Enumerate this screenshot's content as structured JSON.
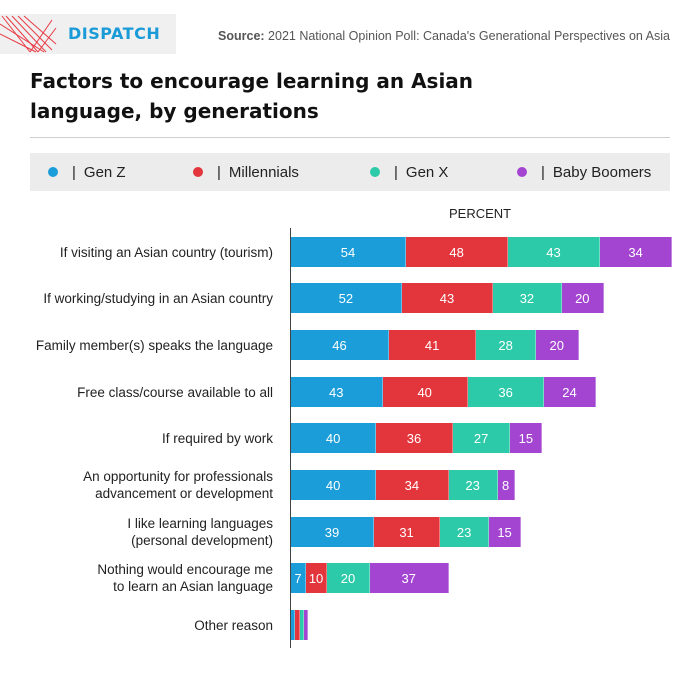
{
  "header": {
    "logo_text": "DISPATCH",
    "source_label": "Source:",
    "source_text": "2021 National Opinion Poll: Canada's Generational Perspectives on Asia"
  },
  "title": "Factors to encourage learning an Asian language, by generations",
  "colors": {
    "gen_z": "#1b9dd9",
    "millennials": "#e3363c",
    "gen_x": "#2ccaa8",
    "baby_boomers": "#a445d1",
    "logo_accent": "#e83a45"
  },
  "legend": [
    {
      "separator": "|",
      "name": "Gen Z"
    },
    {
      "separator": "|",
      "name": "Millennials"
    },
    {
      "separator": "|",
      "name": "Gen X"
    },
    {
      "separator": "|",
      "name": "Baby Boomers"
    }
  ],
  "chart_data": {
    "type": "bar",
    "orientation": "horizontal",
    "stacked": true,
    "xlabel": "PERCENT",
    "categories": [
      "If visiting an Asian country (tourism)",
      "If working/studying in an Asian country",
      "Family member(s) speaks the language",
      "Free class/course available to all",
      "If required by work",
      "An opportunity for professionals advancement or development",
      "I like learning languages (personal development)",
      "Nothing would encourage me to learn an Asian language",
      "Other reason"
    ],
    "series": [
      {
        "name": "Gen Z",
        "values": [
          54,
          52,
          46,
          43,
          40,
          40,
          39,
          7,
          2
        ]
      },
      {
        "name": "Millennials",
        "values": [
          48,
          43,
          41,
          40,
          36,
          34,
          31,
          10,
          2
        ]
      },
      {
        "name": "Gen X",
        "values": [
          43,
          32,
          28,
          36,
          27,
          23,
          23,
          20,
          2
        ]
      },
      {
        "name": "Baby Boomers",
        "values": [
          34,
          20,
          20,
          24,
          15,
          8,
          15,
          37,
          2
        ]
      }
    ],
    "data_labels": [
      [
        "54",
        "48",
        "43",
        "34"
      ],
      [
        "52",
        "43",
        "32",
        "20"
      ],
      [
        "46",
        "41",
        "28",
        "20"
      ],
      [
        "43",
        "40",
        "36",
        "24"
      ],
      [
        "40",
        "36",
        "27",
        "15"
      ],
      [
        "40",
        "34",
        "23",
        "8"
      ],
      [
        "39",
        "31",
        "23",
        "15"
      ],
      [
        "7",
        "10",
        "20",
        "37"
      ],
      [
        "",
        "",
        "",
        ""
      ]
    ],
    "legend_position": "top",
    "grid": false
  }
}
